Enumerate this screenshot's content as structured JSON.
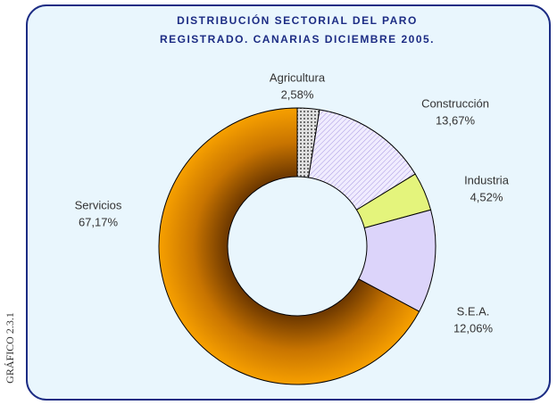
{
  "chart_data": {
    "type": "donut",
    "title": [
      "DISTRIBUCIÓN SECTORIAL DEL PARO",
      "REGISTRADO. CANARIAS DICIEMBRE 2005."
    ],
    "side_label": "GRÁFICO 2.3.1",
    "categories": [
      "Agricultura",
      "Construcción",
      "Industria",
      "S.E.A.",
      "Servicios"
    ],
    "values": [
      2.58,
      13.67,
      4.52,
      12.06,
      67.17
    ],
    "value_labels": [
      "2,58%",
      "13,67%",
      "4,52%",
      "12,06%",
      "67,17%"
    ],
    "colors": [
      "#c8c8c8",
      "#e4dcfa",
      "#e4f47c",
      "#dcd4fa",
      "#f29400"
    ]
  }
}
